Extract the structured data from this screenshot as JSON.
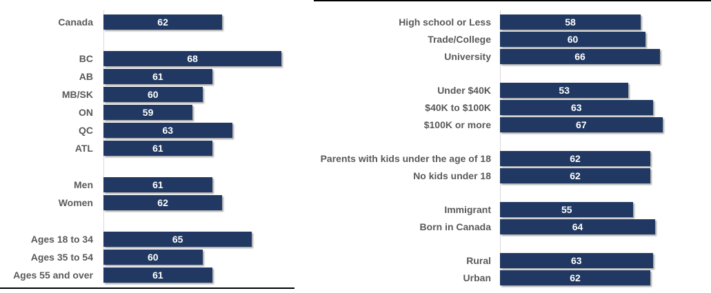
{
  "styles": {
    "bar_color": "#213962",
    "value_text_color": "#ffffff",
    "label_color": "#595959",
    "axis_line_color": "#d9d9d9",
    "divider_color": "#000000",
    "background_color": "#ffffff"
  },
  "chart_data": [
    {
      "type": "bar",
      "orientation": "horizontal",
      "title": "",
      "xlabel": "",
      "ylabel": "",
      "grid": false,
      "legend": false,
      "value_labels": "inside-center",
      "categories": [
        "Canada",
        "BC",
        "AB",
        "MB/SK",
        "ON",
        "QC",
        "ATL",
        "Men",
        "Women",
        "Ages 18 to 34",
        "Ages 35 to 54",
        "Ages 55 and over"
      ],
      "values": [
        62,
        68,
        61,
        60,
        59,
        63,
        61,
        61,
        62,
        65,
        60,
        61
      ],
      "group_sizes": [
        1,
        6,
        2,
        3
      ],
      "xlim": [
        50,
        70
      ]
    },
    {
      "type": "bar",
      "orientation": "horizontal",
      "title": "",
      "xlabel": "",
      "ylabel": "",
      "grid": false,
      "legend": false,
      "value_labels": "inside-center",
      "categories": [
        "High school or Less",
        "Trade/College",
        "University",
        "Under $40K",
        "$40K to $100K",
        "$100K or more",
        "Parents with kids under the age of 18",
        "No kids under 18",
        "Immigrant",
        "Born in Canada",
        "Rural",
        "Urban"
      ],
      "values": [
        58,
        60,
        66,
        53,
        63,
        67,
        62,
        62,
        55,
        64,
        63,
        62
      ],
      "group_sizes": [
        3,
        3,
        2,
        2,
        2
      ],
      "xlim": [
        0,
        87
      ]
    }
  ]
}
